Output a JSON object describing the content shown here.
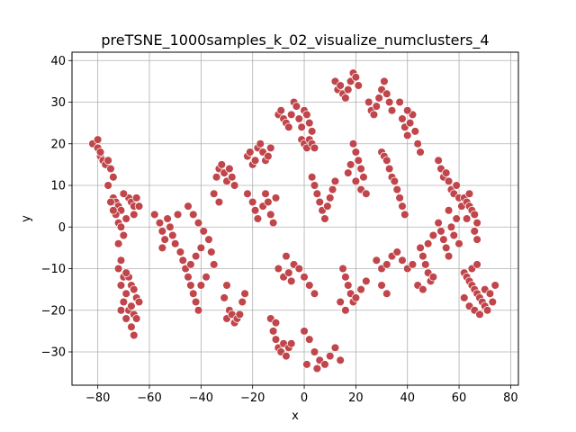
{
  "chart_data": {
    "type": "scatter",
    "title": "preTSNE_1000samples_k_02_visualize_numclusters_4",
    "xlabel": "x",
    "ylabel": "y",
    "xlim": [
      -90,
      83
    ],
    "ylim": [
      -38,
      42
    ],
    "xticks": [
      -80,
      -60,
      -40,
      -20,
      0,
      20,
      40,
      60,
      80
    ],
    "xtick_labels": [
      "−80",
      "−60",
      "−40",
      "−20",
      "0",
      "20",
      "40",
      "60",
      "80"
    ],
    "yticks": [
      -30,
      -20,
      -10,
      0,
      10,
      20,
      30,
      40
    ],
    "ytick_labels": [
      "−30",
      "−20",
      "−10",
      "0",
      "10",
      "20",
      "30",
      "40"
    ],
    "grid": true,
    "marker_color": "#c0464b",
    "marker_edge": "#ffffff",
    "series": [
      {
        "points": [
          [
            -82,
            20
          ],
          [
            -80,
            19
          ],
          [
            -79,
            17
          ],
          [
            -78,
            16
          ],
          [
            -77,
            15
          ],
          [
            -76,
            16
          ],
          [
            -75,
            14
          ],
          [
            -74,
            12
          ],
          [
            -80,
            21
          ],
          [
            -79,
            18
          ],
          [
            -76,
            10
          ],
          [
            -74,
            7
          ],
          [
            -73,
            6
          ],
          [
            -72,
            5
          ],
          [
            -71,
            4
          ],
          [
            -73,
            3
          ],
          [
            -72,
            1
          ],
          [
            -71,
            0
          ],
          [
            -70,
            -2
          ],
          [
            -72,
            -4
          ],
          [
            -71,
            -8
          ],
          [
            -72,
            -10
          ],
          [
            -70,
            -12
          ],
          [
            -71,
            -14
          ],
          [
            -69,
            -16
          ],
          [
            -70,
            -18
          ],
          [
            -68,
            -20
          ],
          [
            -69,
            -22
          ],
          [
            -67,
            -24
          ],
          [
            -66,
            -26
          ],
          [
            -68,
            7
          ],
          [
            -67,
            6
          ],
          [
            -66,
            5
          ],
          [
            -65,
            7
          ],
          [
            -66,
            3
          ],
          [
            -64,
            5
          ],
          [
            -70,
            8
          ],
          [
            -69,
            2
          ],
          [
            -74,
            4
          ],
          [
            -75,
            6
          ],
          [
            -68,
            -12
          ],
          [
            -67,
            -14
          ],
          [
            -66,
            -15
          ],
          [
            -65,
            -17
          ],
          [
            -64,
            -18
          ],
          [
            -67,
            -19
          ],
          [
            -66,
            -21
          ],
          [
            -65,
            -22
          ],
          [
            -69,
            -11
          ],
          [
            -71,
            -20
          ],
          [
            -58,
            3
          ],
          [
            -56,
            1
          ],
          [
            -55,
            -1
          ],
          [
            -54,
            -3
          ],
          [
            -55,
            -5
          ],
          [
            -53,
            2
          ],
          [
            -52,
            0
          ],
          [
            -51,
            -2
          ],
          [
            -50,
            -4
          ],
          [
            -49,
            3
          ],
          [
            -48,
            -6
          ],
          [
            -47,
            -8
          ],
          [
            -46,
            -10
          ],
          [
            -45,
            -12
          ],
          [
            -44,
            -14
          ],
          [
            -43,
            -16
          ],
          [
            -42,
            -18
          ],
          [
            -41,
            -20
          ],
          [
            -40,
            -14
          ],
          [
            -38,
            -12
          ],
          [
            -45,
            5
          ],
          [
            -43,
            3
          ],
          [
            -41,
            1
          ],
          [
            -39,
            -1
          ],
          [
            -37,
            -3
          ],
          [
            -40,
            -5
          ],
          [
            -42,
            -7
          ],
          [
            -44,
            -9
          ],
          [
            -36,
            -6
          ],
          [
            -35,
            -9
          ],
          [
            -34,
            12
          ],
          [
            -33,
            14
          ],
          [
            -32,
            15
          ],
          [
            -31,
            13
          ],
          [
            -30,
            11
          ],
          [
            -29,
            14
          ],
          [
            -28,
            12
          ],
          [
            -27,
            10
          ],
          [
            -35,
            8
          ],
          [
            -33,
            6
          ],
          [
            -30,
            -22
          ],
          [
            -29,
            -20
          ],
          [
            -28,
            -21
          ],
          [
            -27,
            -23
          ],
          [
            -26,
            -22
          ],
          [
            -25,
            -21
          ],
          [
            -24,
            -18
          ],
          [
            -23,
            -16
          ],
          [
            -31,
            -17
          ],
          [
            -30,
            -14
          ],
          [
            -22,
            17
          ],
          [
            -21,
            18
          ],
          [
            -20,
            15
          ],
          [
            -19,
            16
          ],
          [
            -18,
            19
          ],
          [
            -17,
            20
          ],
          [
            -16,
            18
          ],
          [
            -15,
            16
          ],
          [
            -14,
            17
          ],
          [
            -13,
            19
          ],
          [
            -22,
            8
          ],
          [
            -20,
            6
          ],
          [
            -19,
            4
          ],
          [
            -18,
            2
          ],
          [
            -16,
            5
          ],
          [
            -15,
            8
          ],
          [
            -14,
            6
          ],
          [
            -13,
            3
          ],
          [
            -12,
            1
          ],
          [
            -11,
            7
          ],
          [
            -10,
            27
          ],
          [
            -9,
            28
          ],
          [
            -8,
            26
          ],
          [
            -7,
            25
          ],
          [
            -6,
            24
          ],
          [
            -5,
            27
          ],
          [
            -4,
            30
          ],
          [
            -3,
            29
          ],
          [
            -2,
            26
          ],
          [
            -1,
            24
          ],
          [
            0,
            28
          ],
          [
            1,
            27
          ],
          [
            2,
            25
          ],
          [
            3,
            23
          ],
          [
            -1,
            21
          ],
          [
            0,
            20
          ],
          [
            1,
            19
          ],
          [
            2,
            21
          ],
          [
            3,
            20
          ],
          [
            4,
            19
          ],
          [
            -12,
            -25
          ],
          [
            -11,
            -27
          ],
          [
            -10,
            -29
          ],
          [
            -9,
            -30
          ],
          [
            -8,
            -28
          ],
          [
            -7,
            -31
          ],
          [
            -6,
            -29
          ],
          [
            -5,
            -28
          ],
          [
            -13,
            -22
          ],
          [
            -11,
            -23
          ],
          [
            -10,
            -10
          ],
          [
            -8,
            -12
          ],
          [
            -6,
            -11
          ],
          [
            -4,
            -9
          ],
          [
            -2,
            -10
          ],
          [
            0,
            -12
          ],
          [
            2,
            -14
          ],
          [
            4,
            -16
          ],
          [
            -7,
            -7
          ],
          [
            -5,
            -13
          ],
          [
            0,
            -25
          ],
          [
            2,
            -27
          ],
          [
            4,
            -30
          ],
          [
            6,
            -32
          ],
          [
            8,
            -33
          ],
          [
            10,
            -31
          ],
          [
            12,
            -29
          ],
          [
            14,
            -32
          ],
          [
            1,
            -33
          ],
          [
            5,
            -34
          ],
          [
            3,
            12
          ],
          [
            4,
            10
          ],
          [
            5,
            8
          ],
          [
            6,
            6
          ],
          [
            7,
            4
          ],
          [
            8,
            2
          ],
          [
            9,
            5
          ],
          [
            10,
            7
          ],
          [
            11,
            9
          ],
          [
            12,
            11
          ],
          [
            12,
            35
          ],
          [
            13,
            33
          ],
          [
            14,
            34
          ],
          [
            15,
            32
          ],
          [
            16,
            31
          ],
          [
            17,
            33
          ],
          [
            18,
            35
          ],
          [
            19,
            37
          ],
          [
            20,
            36
          ],
          [
            21,
            34
          ],
          [
            19,
            20
          ],
          [
            20,
            18
          ],
          [
            21,
            16
          ],
          [
            22,
            14
          ],
          [
            23,
            12
          ],
          [
            18,
            15
          ],
          [
            17,
            13
          ],
          [
            20,
            11
          ],
          [
            22,
            9
          ],
          [
            24,
            8
          ],
          [
            15,
            -10
          ],
          [
            16,
            -12
          ],
          [
            17,
            -14
          ],
          [
            18,
            -16
          ],
          [
            19,
            -18
          ],
          [
            20,
            -17
          ],
          [
            22,
            -15
          ],
          [
            24,
            -13
          ],
          [
            14,
            -18
          ],
          [
            16,
            -20
          ],
          [
            25,
            30
          ],
          [
            26,
            28
          ],
          [
            27,
            27
          ],
          [
            28,
            29
          ],
          [
            29,
            31
          ],
          [
            30,
            33
          ],
          [
            31,
            35
          ],
          [
            32,
            32
          ],
          [
            33,
            30
          ],
          [
            34,
            28
          ],
          [
            30,
            18
          ],
          [
            31,
            17
          ],
          [
            32,
            16
          ],
          [
            33,
            14
          ],
          [
            34,
            12
          ],
          [
            35,
            11
          ],
          [
            36,
            9
          ],
          [
            37,
            7
          ],
          [
            38,
            5
          ],
          [
            39,
            3
          ],
          [
            28,
            -8
          ],
          [
            30,
            -10
          ],
          [
            32,
            -9
          ],
          [
            34,
            -7
          ],
          [
            36,
            -6
          ],
          [
            38,
            -8
          ],
          [
            40,
            -10
          ],
          [
            42,
            -9
          ],
          [
            30,
            -14
          ],
          [
            32,
            -16
          ],
          [
            38,
            26
          ],
          [
            39,
            24
          ],
          [
            40,
            22
          ],
          [
            41,
            25
          ],
          [
            42,
            27
          ],
          [
            43,
            23
          ],
          [
            44,
            20
          ],
          [
            45,
            18
          ],
          [
            40,
            28
          ],
          [
            37,
            30
          ],
          [
            45,
            -5
          ],
          [
            46,
            -7
          ],
          [
            47,
            -9
          ],
          [
            48,
            -11
          ],
          [
            49,
            -13
          ],
          [
            50,
            -12
          ],
          [
            44,
            -14
          ],
          [
            46,
            -15
          ],
          [
            48,
            -4
          ],
          [
            50,
            -2
          ],
          [
            52,
            16
          ],
          [
            53,
            14
          ],
          [
            54,
            12
          ],
          [
            55,
            13
          ],
          [
            56,
            11
          ],
          [
            57,
            9
          ],
          [
            58,
            8
          ],
          [
            59,
            10
          ],
          [
            60,
            7
          ],
          [
            61,
            5
          ],
          [
            52,
            1
          ],
          [
            53,
            -1
          ],
          [
            54,
            -3
          ],
          [
            55,
            -5
          ],
          [
            56,
            -7
          ],
          [
            57,
            0
          ],
          [
            58,
            -2
          ],
          [
            59,
            2
          ],
          [
            56,
            4
          ],
          [
            60,
            -4
          ],
          [
            62,
            -11
          ],
          [
            63,
            -12
          ],
          [
            64,
            -13
          ],
          [
            65,
            -14
          ],
          [
            66,
            -15
          ],
          [
            67,
            -16
          ],
          [
            68,
            -17
          ],
          [
            69,
            -18
          ],
          [
            70,
            -19
          ],
          [
            71,
            -20
          ],
          [
            62,
            -17
          ],
          [
            64,
            -19
          ],
          [
            66,
            -20
          ],
          [
            68,
            -21
          ],
          [
            70,
            -15
          ],
          [
            72,
            -16
          ],
          [
            73,
            -18
          ],
          [
            74,
            -14
          ],
          [
            65,
            -10
          ],
          [
            67,
            -9
          ],
          [
            62,
            7
          ],
          [
            63,
            6
          ],
          [
            64,
            5
          ],
          [
            65,
            4
          ],
          [
            66,
            3
          ],
          [
            67,
            1
          ],
          [
            66,
            -1
          ],
          [
            67,
            -3
          ],
          [
            64,
            8
          ],
          [
            63,
            2
          ]
        ]
      }
    ]
  }
}
